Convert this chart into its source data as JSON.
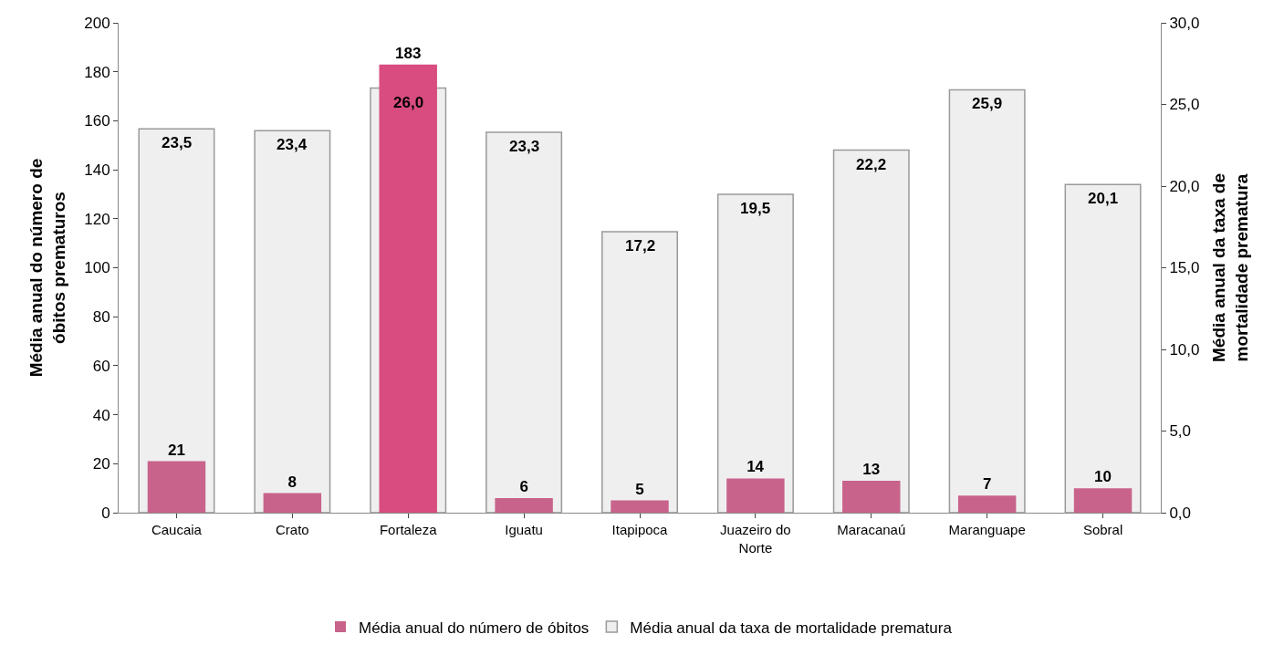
{
  "chart_data": {
    "type": "bar",
    "categories": [
      "Caucaia",
      "Crato",
      "Fortaleza",
      "Iguatu",
      "Itapipoca",
      "Juazeiro do Norte",
      "Maracanaú",
      "Maranguape",
      "Sobral"
    ],
    "ylabel": "Média anual do número de óbitos prematuros",
    "y2label": "Média anual da taxa de mortalidade prematura",
    "ylim": [
      0,
      200
    ],
    "yticks": [
      0,
      20,
      40,
      60,
      80,
      100,
      120,
      140,
      160,
      180,
      200
    ],
    "y2lim": [
      0,
      30
    ],
    "y2ticks": [
      {
        "value": 0,
        "label": "0,0"
      },
      {
        "value": 5,
        "label": "5,0"
      },
      {
        "value": 10,
        "label": "10,0"
      },
      {
        "value": 15,
        "label": "15,0"
      },
      {
        "value": 20,
        "label": "20,0"
      },
      {
        "value": 25,
        "label": "25,0"
      },
      {
        "value": 30,
        "label": "30,0"
      }
    ],
    "series": [
      {
        "name": "Média anual do número de óbitos",
        "axis": "y",
        "colors": [
          "#c8638c",
          "#c8638c",
          "#d84c80",
          "#c8638c",
          "#c8638c",
          "#c8638c",
          "#c8638c",
          "#c8638c",
          "#c8638c"
        ],
        "values": [
          21,
          8,
          183,
          6,
          5,
          14,
          13,
          7,
          10
        ],
        "value_labels": [
          "21",
          "8",
          "183",
          "6",
          "5",
          "14",
          "13",
          "7",
          "10"
        ]
      },
      {
        "name": "Média anual da taxa de mortalidade prematura",
        "axis": "y2",
        "color": "#efefef",
        "values": [
          23.5,
          23.4,
          26.0,
          23.3,
          17.2,
          19.5,
          22.2,
          25.9,
          20.1
        ],
        "value_labels": [
          "23,5",
          "23,4",
          "26,0",
          "23,3",
          "17,2",
          "19,5",
          "22,2",
          "25,9",
          "20,1"
        ]
      }
    ],
    "legend": "bottom"
  }
}
